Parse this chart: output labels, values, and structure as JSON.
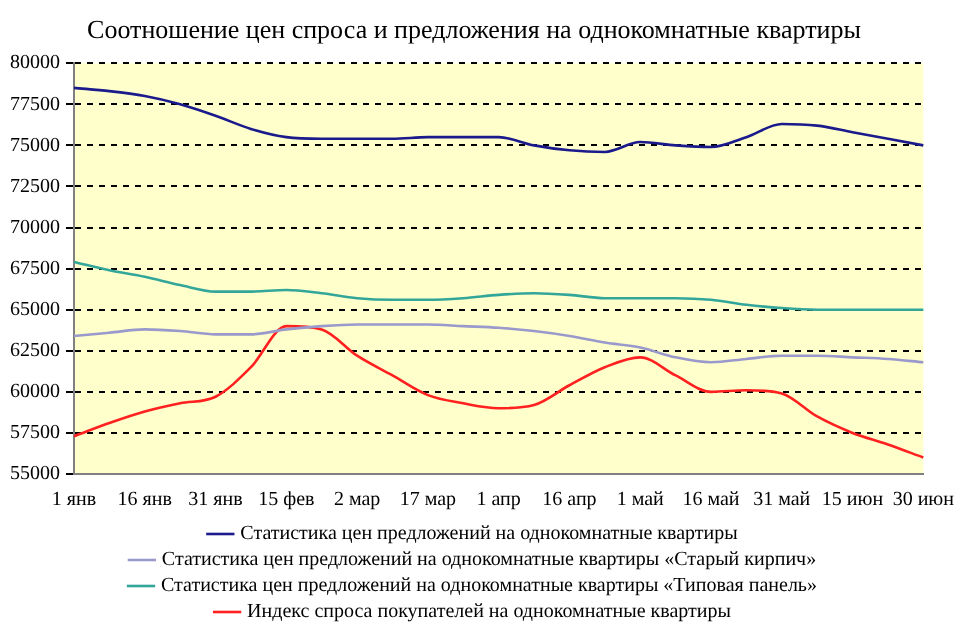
{
  "chart_data": {
    "type": "line",
    "title": "Соотношение цен спроса и предложения на однокомнатные квартиры",
    "categories": [
      "1 янв",
      null,
      "16 янв",
      null,
      "31 янв",
      null,
      "15 фев",
      null,
      "2 мар",
      null,
      "17 мар",
      null,
      "1 апр",
      null,
      "16 апр",
      null,
      "1 май",
      null,
      "16 май",
      null,
      "31 май",
      null,
      "15 июн",
      null,
      "30 июн"
    ],
    "series": [
      {
        "name": "Статистика цен предложений на однокомнатные квартиры",
        "color": "#1a1a8c",
        "values": [
          78500,
          78300,
          78000,
          77500,
          76800,
          76000,
          75500,
          75400,
          75400,
          75400,
          75500,
          75500,
          75500,
          75000,
          74700,
          74600,
          75200,
          75000,
          74900,
          75500,
          76300,
          76200,
          75800,
          75400,
          75000
        ]
      },
      {
        "name": "Статистика цен предложений на однокомнатные квартиры «Старый кирпич»",
        "color": "#9999cc",
        "values": [
          63400,
          63600,
          63800,
          63700,
          63500,
          63500,
          63800,
          64000,
          64100,
          64100,
          64100,
          64000,
          63900,
          63700,
          63400,
          63000,
          62700,
          62100,
          61800,
          62000,
          62200,
          62200,
          62100,
          62000,
          61800
        ]
      },
      {
        "name": "Статистика цен предложений на однокомнатные квартиры «Типовая панель»",
        "color": "#33a69a",
        "values": [
          67900,
          67400,
          67000,
          66500,
          66100,
          66100,
          66200,
          66000,
          65700,
          65600,
          65600,
          65700,
          65900,
          66000,
          65900,
          65700,
          65700,
          65700,
          65600,
          65300,
          65100,
          65000,
          65000,
          65000,
          65000
        ]
      },
      {
        "name": "Индекс спроса покупателей на однокомнатные квартиры",
        "color": "#ff2020",
        "values": [
          57300,
          58100,
          58800,
          59300,
          59700,
          61500,
          64000,
          63800,
          62200,
          61000,
          59800,
          59300,
          59000,
          59200,
          60400,
          61500,
          62100,
          61000,
          60000,
          60100,
          59900,
          58500,
          57500,
          56800,
          56000
        ]
      }
    ],
    "ylim": [
      55000,
      80000
    ],
    "yticks": [
      55000,
      57500,
      60000,
      62500,
      65000,
      67500,
      70000,
      72500,
      75000,
      77500,
      80000
    ],
    "grid": "y",
    "legend": "bottom",
    "marker": "none",
    "line_style": "solid"
  }
}
